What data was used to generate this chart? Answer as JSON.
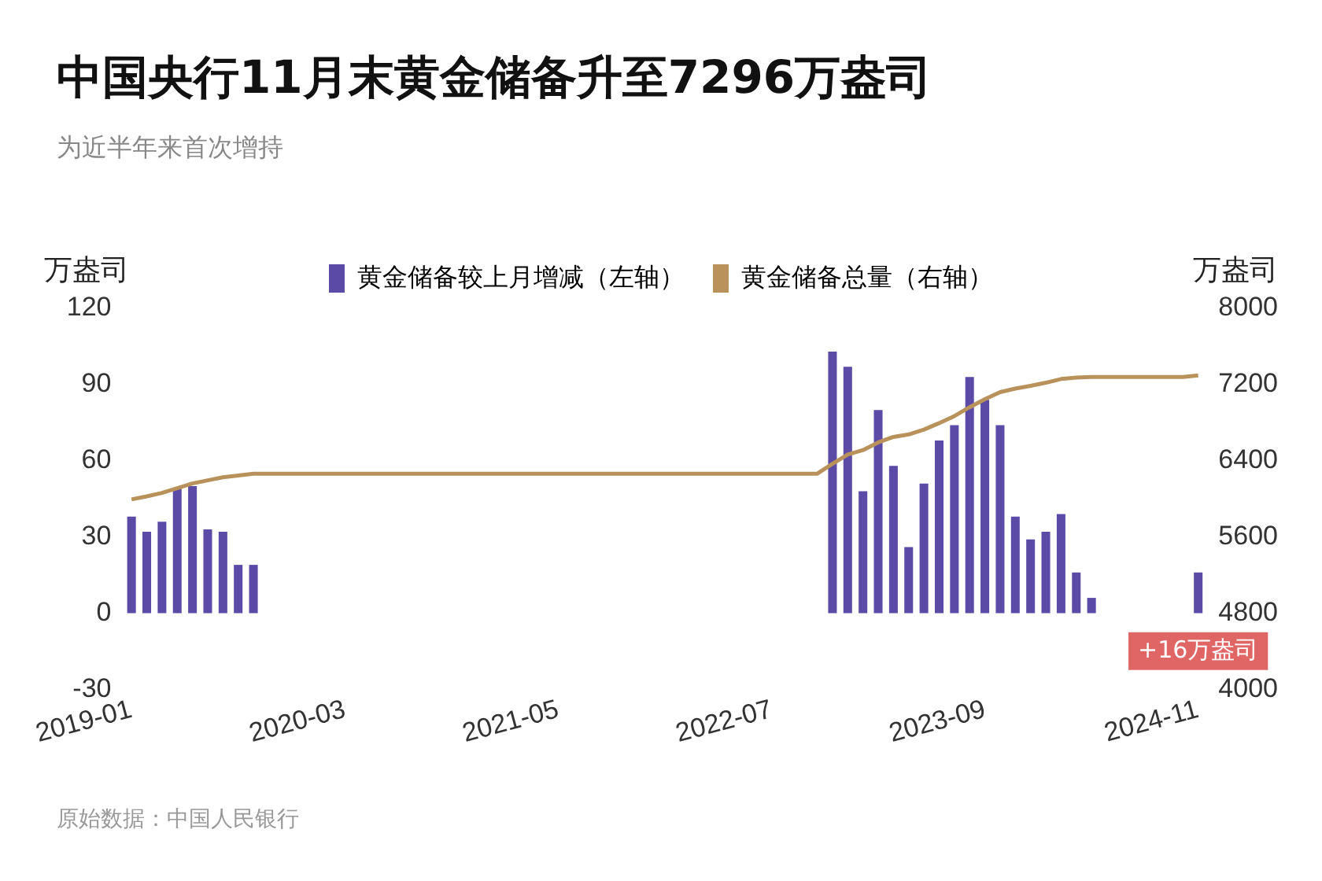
{
  "chart_data": {
    "type": "bar",
    "title": "中国央行11月末黄金储备升至7296万盎司",
    "subtitle": "为近半年来首次增持",
    "ylabel": "万盎司",
    "y2label": "万盎司",
    "categories": [
      "2019-01",
      null,
      null,
      null,
      null,
      null,
      null,
      null,
      null,
      null,
      null,
      null,
      null,
      null,
      "2020-03",
      null,
      null,
      null,
      null,
      null,
      null,
      null,
      null,
      null,
      null,
      null,
      null,
      null,
      "2021-05",
      null,
      null,
      null,
      null,
      null,
      null,
      null,
      null,
      null,
      null,
      null,
      null,
      null,
      "2022-07",
      null,
      null,
      null,
      null,
      null,
      null,
      null,
      null,
      null,
      null,
      null,
      null,
      null,
      "2023-09",
      null,
      null,
      null,
      null,
      null,
      null,
      null,
      null,
      null,
      null,
      null,
      null,
      null,
      "2024-11"
    ],
    "series": [
      {
        "name": "黄金储备较上月增减（左轴）",
        "color": "#5b4aa6",
        "values": [
          38,
          32,
          36,
          49,
          50,
          33,
          32,
          19,
          19,
          0,
          0,
          0,
          0,
          0,
          0,
          0,
          0,
          0,
          0,
          0,
          0,
          0,
          0,
          0,
          0,
          0,
          0,
          0,
          0,
          0,
          0,
          0,
          0,
          0,
          0,
          0,
          0,
          0,
          0,
          0,
          0,
          0,
          0,
          0,
          0,
          0,
          103,
          97,
          48,
          80,
          58,
          26,
          51,
          68,
          74,
          93,
          84,
          74,
          38,
          29,
          32,
          39,
          16,
          6,
          0,
          0,
          0,
          0,
          0,
          0,
          16
        ]
      },
      {
        "name": "黄金储备总量（右轴）",
        "type": "line",
        "axis": "y2",
        "color": "#b8925a",
        "values": [
          5994,
          6026,
          6062,
          6111,
          6161,
          6194,
          6226,
          6245,
          6264,
          6264,
          6264,
          6264,
          6264,
          6264,
          6264,
          6264,
          6264,
          6264,
          6264,
          6264,
          6264,
          6264,
          6264,
          6264,
          6264,
          6264,
          6264,
          6264,
          6264,
          6264,
          6264,
          6264,
          6264,
          6264,
          6264,
          6264,
          6264,
          6264,
          6264,
          6264,
          6264,
          6264,
          6264,
          6264,
          6264,
          6264,
          6367,
          6464,
          6512,
          6592,
          6650,
          6676,
          6727,
          6795,
          6869,
          6962,
          7046,
          7120,
          7158,
          7187,
          7219,
          7258,
          7274,
          7280,
          7280,
          7280,
          7280,
          7280,
          7280,
          7280,
          7296
        ]
      }
    ],
    "ylim": [
      -30,
      120
    ],
    "yticks": [
      -30,
      0,
      30,
      60,
      90,
      120
    ],
    "y2lim": [
      4000,
      8000
    ],
    "y2ticks": [
      4000,
      4800,
      5600,
      6400,
      7200,
      8000
    ],
    "legend": "top",
    "grid": false,
    "marker": "none",
    "annotations": [
      {
        "text": "+16万盎司",
        "x": "2024-11",
        "y": 16
      },
      "原始数据：中国人民银行"
    ]
  }
}
